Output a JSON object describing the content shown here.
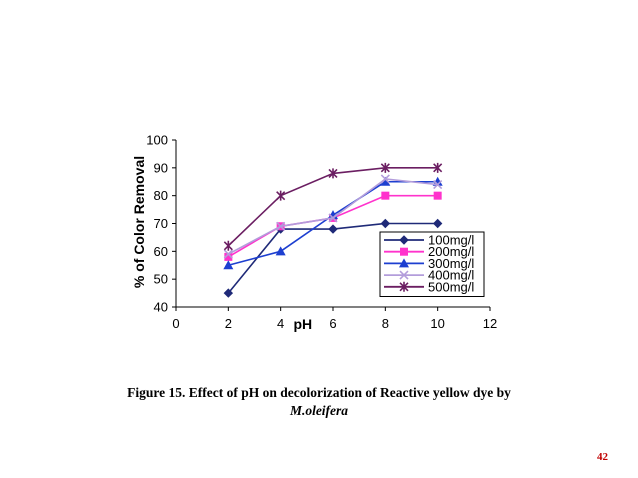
{
  "chart_data": {
    "type": "line",
    "title": "",
    "xlabel": "pH",
    "ylabel": "% of Color Removal",
    "xlim": [
      0,
      12
    ],
    "ylim": [
      40,
      100
    ],
    "x_ticks": [
      "0",
      "2",
      "4",
      "6",
      "8",
      "10",
      "12"
    ],
    "y_ticks": [
      "40",
      "50",
      "60",
      "70",
      "80",
      "90",
      "100"
    ],
    "grid": false,
    "legend_position": "bottom-right",
    "x": [
      2,
      4,
      6,
      8,
      10
    ],
    "series": [
      {
        "name": "100mg/l",
        "values": [
          45,
          68,
          68,
          70,
          70
        ],
        "color": "#1f2a78",
        "marker": "diamond"
      },
      {
        "name": "200mg/l",
        "values": [
          58,
          69,
          72,
          80,
          80
        ],
        "color": "#ff33cc",
        "marker": "square"
      },
      {
        "name": "300mg/l",
        "values": [
          55,
          60,
          73,
          85,
          85
        ],
        "color": "#1d3fd0",
        "marker": "triangle"
      },
      {
        "name": "400mg/l",
        "values": [
          59,
          69,
          72,
          86,
          84
        ],
        "color": "#b39ddb",
        "marker": "x"
      },
      {
        "name": "500mg/l",
        "values": [
          62,
          80,
          88,
          90,
          90
        ],
        "color": "#6b1e62",
        "marker": "star"
      }
    ]
  },
  "caption": {
    "line1": "Figure 15. Effect of pH on decolorization of Reactive yellow dye by",
    "line2": "M.oleifera"
  },
  "page_number": "42"
}
